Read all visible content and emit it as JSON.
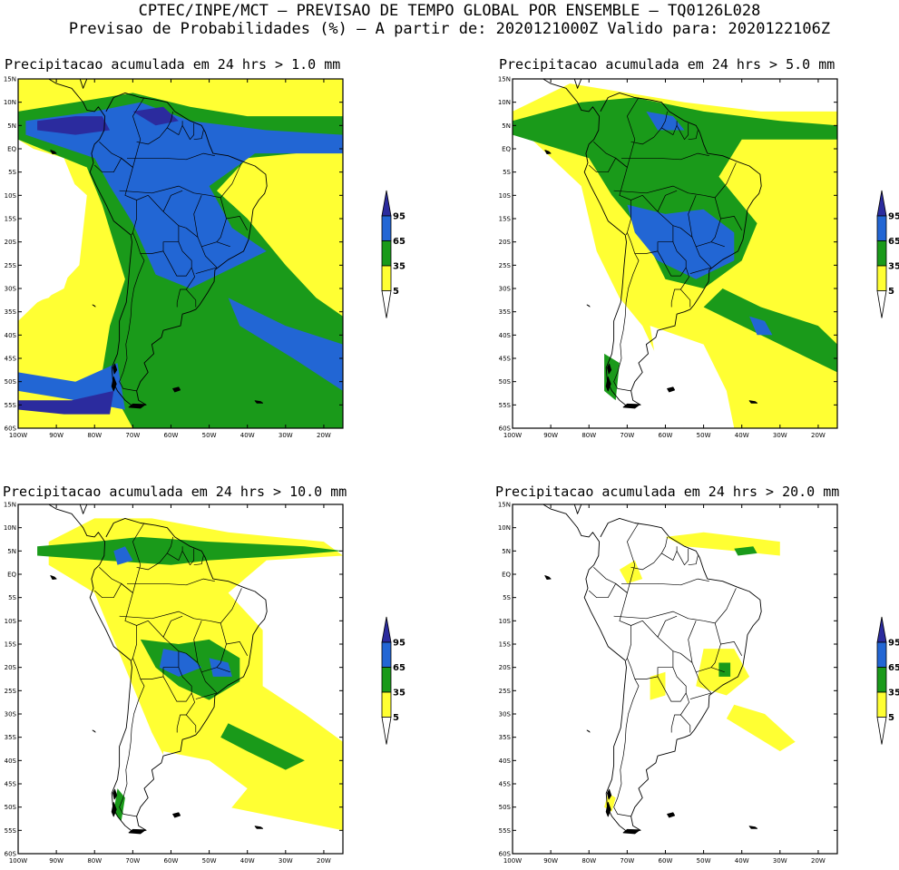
{
  "header": {
    "line1": "CPTEC/INPE/MCT – PREVISAO DE TEMPO GLOBAL POR ENSEMBLE – TQ0126L028",
    "line2": "Previsao de Probabilidades (%) –  A partir de: 2020121000Z  Valido para: 2020122106Z"
  },
  "axes": {
    "lat_labels": [
      "15N",
      "10N",
      "5N",
      "EQ",
      "5S",
      "10S",
      "15S",
      "20S",
      "25S",
      "30S",
      "35S",
      "40S",
      "45S",
      "50S",
      "55S",
      "60S"
    ],
    "lat_values": [
      15,
      10,
      5,
      0,
      -5,
      -10,
      -15,
      -20,
      -25,
      -30,
      -35,
      -40,
      -45,
      -50,
      -55,
      -60
    ],
    "lon_labels": [
      "100W",
      "90W",
      "80W",
      "70W",
      "60W",
      "50W",
      "40W",
      "30W",
      "20W"
    ],
    "lon_values": [
      -100,
      -90,
      -80,
      -70,
      -60,
      -50,
      -40,
      -30,
      -20
    ],
    "lon_range": [
      -100,
      -15
    ],
    "lat_range": [
      -60,
      15
    ]
  },
  "colorbar": {
    "labels": [
      "95",
      "65",
      "35",
      "5"
    ],
    "colors": {
      "c5": "#ffff33",
      "c35": "#1a9a1a",
      "c65": "#2266d4",
      "c95": "#2b2b9e"
    }
  },
  "panels": [
    {
      "id": "p1",
      "title": "Precipitacao acumulada em 24 hrs > 1.0 mm"
    },
    {
      "id": "p2",
      "title": "Precipitacao acumulada em 24 hrs > 5.0 mm"
    },
    {
      "id": "p3",
      "title": "Precipitacao acumulada em 24 hrs > 10.0 mm"
    },
    {
      "id": "p4",
      "title": "Precipitacao acumulada em 24 hrs > 20.0 mm"
    }
  ]
}
